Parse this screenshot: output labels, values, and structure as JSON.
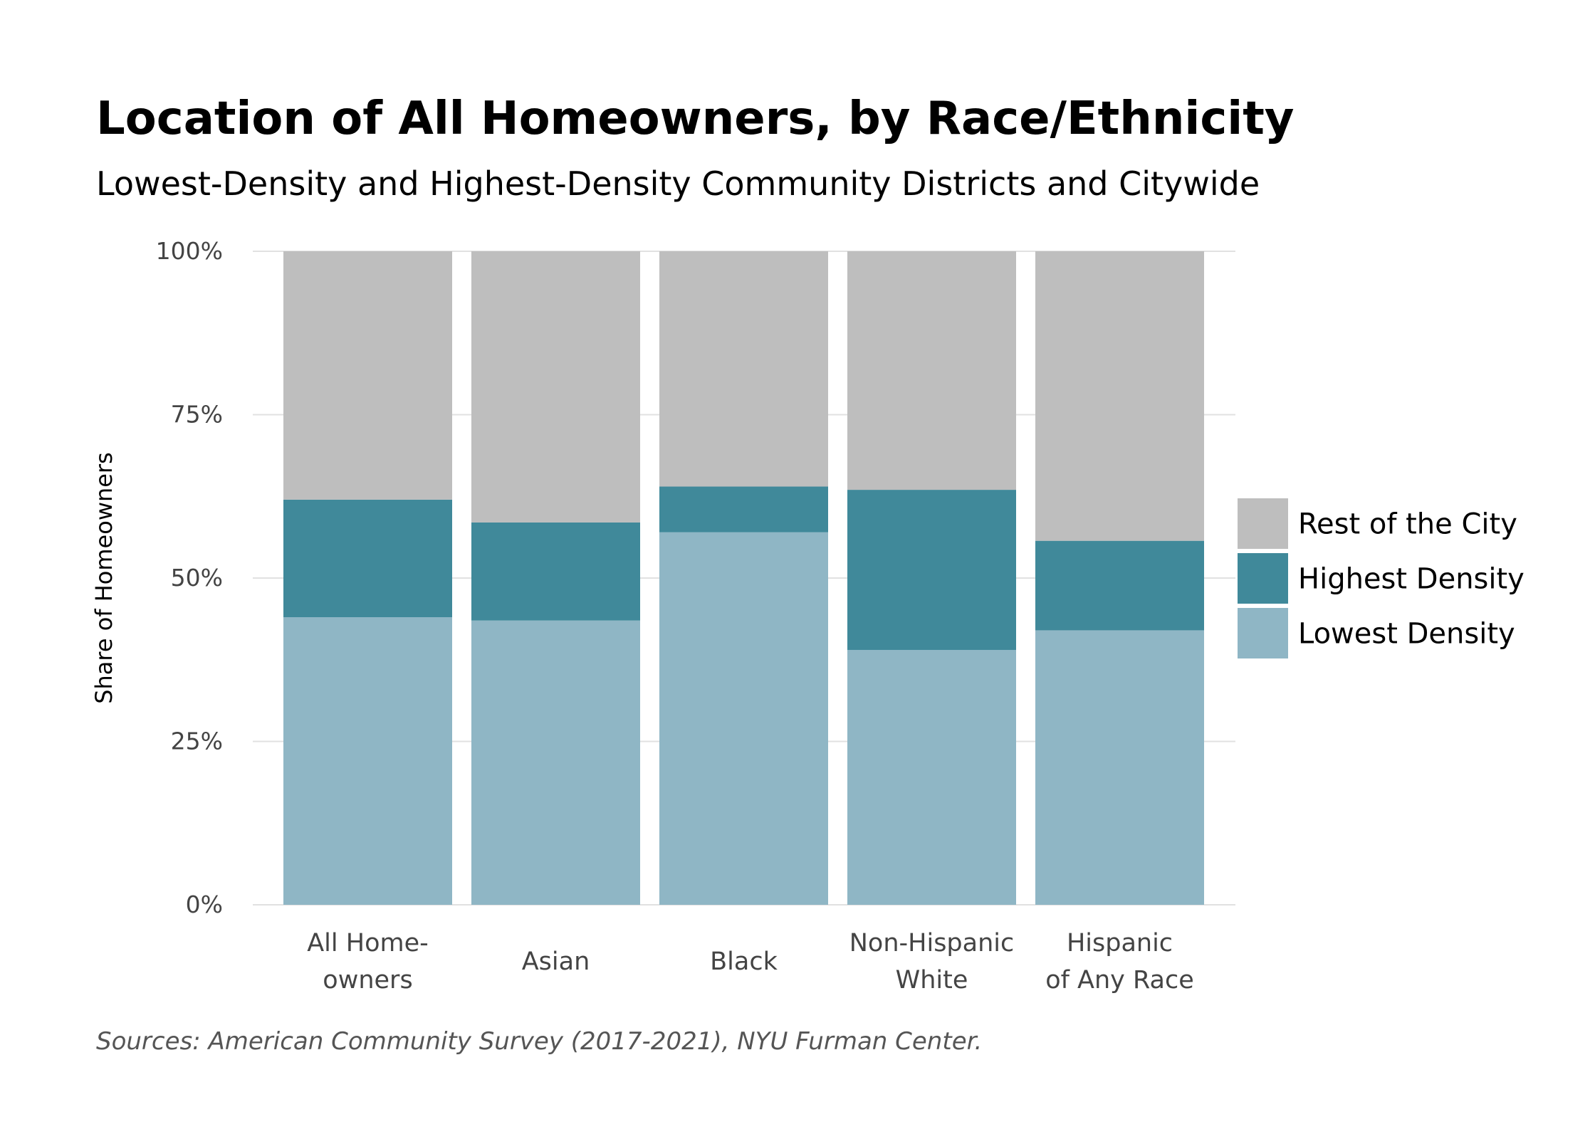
{
  "chart_data": {
    "type": "bar",
    "stacked": true,
    "title": "Location of All Homeowners, by Race/Ethnicity",
    "subtitle": "Lowest-Density and Highest-Density Community Districts and Citywide",
    "ylabel": "Share of Homeowners",
    "xlabel": "",
    "ylim": [
      0,
      100
    ],
    "y_ticks": [
      "0%",
      "25%",
      "50%",
      "75%",
      "100%"
    ],
    "categories": [
      [
        "All Home-",
        "owners"
      ],
      [
        "Asian"
      ],
      [
        "Black"
      ],
      [
        "Non-Hispanic",
        "White"
      ],
      [
        "Hispanic",
        "of Any Race"
      ]
    ],
    "series": [
      {
        "name": "Lowest Density",
        "color": "#8fb6c5",
        "values": [
          44,
          43.5,
          57,
          39,
          42
        ]
      },
      {
        "name": "Highest Density",
        "color": "#40899a",
        "values": [
          18,
          15,
          7,
          24.5,
          13.7
        ]
      },
      {
        "name": "Rest of the City",
        "color": "#bebebe",
        "values": [
          38,
          41.5,
          36,
          36.5,
          44.3
        ]
      }
    ],
    "legend": {
      "position": "right",
      "order": [
        "Rest of the City",
        "Highest Density",
        "Lowest Density"
      ]
    },
    "grid": true,
    "caption": "Sources: American Community Survey (2017-2021), NYU Furman Center."
  }
}
